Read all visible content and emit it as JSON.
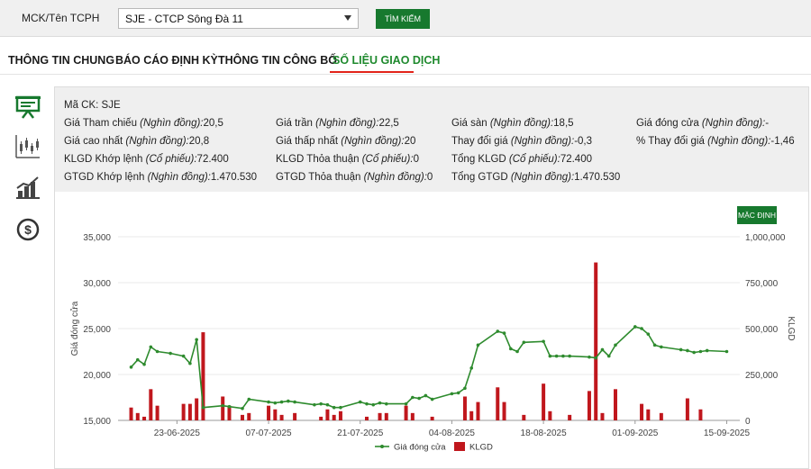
{
  "search": {
    "label": "MCK/Tên TCPH",
    "selected": "SJE - CTCP Sông Đà 11",
    "button": "TÌM KIẾM"
  },
  "tabs": [
    {
      "label": "THÔNG TIN CHUNG",
      "active": false
    },
    {
      "label": "BÁO CÁO ĐỊNH KỲ",
      "active": false
    },
    {
      "label": "THÔNG TIN CÔNG BỐ",
      "active": false
    },
    {
      "label": "SỐ LIỆU GIAO DỊCH",
      "active": true
    }
  ],
  "side_icons": [
    "presentation-icon",
    "candlestick-chart-icon",
    "bar-growth-icon",
    "dollar-coin-icon"
  ],
  "info": {
    "ticker": {
      "label": "Mã CK:",
      "value": "SJE"
    },
    "items": [
      {
        "label": "Giá Tham chiếu",
        "unit": "(Nghìn đồng):",
        "value": "20,5"
      },
      {
        "label": "Giá trần",
        "unit": "(Nghìn đồng):",
        "value": "22,5"
      },
      {
        "label": "Giá sàn",
        "unit": "(Nghìn đồng):",
        "value": "18,5"
      },
      {
        "label": "Giá đóng cửa",
        "unit": "(Nghìn đồng):",
        "value": "-"
      },
      {
        "label": "Giá cao nhất",
        "unit": "(Nghìn đồng):",
        "value": "20,8"
      },
      {
        "label": "Giá thấp nhất",
        "unit": "(Nghìn đồng):",
        "value": "20"
      },
      {
        "label": "Thay đổi giá",
        "unit": "(Nghìn đồng):",
        "value": "-0,3"
      },
      {
        "label": "% Thay đổi giá",
        "unit": "(Nghìn đồng):",
        "value": "-1,46"
      },
      {
        "label": "KLGD Khớp lệnh",
        "unit": "(Cổ phiếu):",
        "value": "72.400"
      },
      {
        "label": "KLGD Thỏa thuận",
        "unit": "(Cổ phiếu):",
        "value": "0"
      },
      {
        "label": "Tổng KLGD",
        "unit": "(Cổ phiếu):",
        "value": "72.400"
      },
      {
        "label": "GTGD Khớp lệnh",
        "unit": "(Nghìn đồng):",
        "value": "1.470.530"
      },
      {
        "label": "GTGD Thỏa thuận",
        "unit": "(Nghìn đồng):",
        "value": "0"
      },
      {
        "label": "Tổng GTGD",
        "unit": "(Nghìn đồng):",
        "value": "1.470.530"
      }
    ]
  },
  "chart_controls": {
    "reset_label": "MẶC ĐỊNH"
  },
  "colors": {
    "green": "#17792e",
    "line": "#2e8b2e",
    "bar": "#c0171d",
    "active_tab": "#1f8a2e",
    "underline": "#e2231a"
  },
  "chart_data": {
    "type": "bar+line",
    "ylabel_left": "Giá đóng cửa",
    "ylabel_right": "KLGD",
    "ylim_left": [
      15000,
      35000
    ],
    "yticks_left": [
      "15,000",
      "20,000",
      "25,000",
      "30,000",
      "35,000"
    ],
    "ylim_right": [
      0,
      1000000
    ],
    "yticks_right": [
      "0",
      "250,000",
      "500,000",
      "750,000",
      "1,000,000"
    ],
    "xticks": [
      {
        "label": "23-06-2025",
        "day": 0
      },
      {
        "label": "07-07-2025",
        "day": 14
      },
      {
        "label": "21-07-2025",
        "day": 28
      },
      {
        "label": "04-08-2025",
        "day": 42
      },
      {
        "label": "18-08-2025",
        "day": 56
      },
      {
        "label": "01-09-2025",
        "day": 70
      },
      {
        "label": "15-09-2025",
        "day": 84
      }
    ],
    "legend": [
      {
        "name": "Giá đóng cửa",
        "kind": "line"
      },
      {
        "name": "KLGD",
        "kind": "bar"
      }
    ],
    "series_price_day": [
      -7,
      -6,
      -5,
      -4,
      -3,
      -1,
      1,
      2,
      3,
      4,
      7,
      8,
      10,
      11,
      14,
      15,
      16,
      17,
      18,
      21,
      22,
      23,
      24,
      25,
      28,
      29,
      30,
      31,
      32,
      35,
      36,
      37,
      38,
      39,
      42,
      43,
      44,
      45,
      46,
      49,
      50,
      51,
      52,
      53,
      56,
      57,
      58,
      59,
      60,
      63,
      64,
      65,
      66,
      67,
      70,
      71,
      72,
      73,
      74,
      77,
      78,
      79,
      80,
      81,
      84
    ],
    "series_price": [
      20800,
      21600,
      21100,
      23000,
      22500,
      22300,
      22000,
      21200,
      23800,
      16400,
      16600,
      16500,
      16300,
      17300,
      17000,
      16900,
      17000,
      17100,
      17000,
      16700,
      16800,
      16700,
      16400,
      16400,
      17000,
      16800,
      16700,
      16900,
      16800,
      16800,
      17500,
      17400,
      17700,
      17300,
      17900,
      18000,
      18500,
      20700,
      23200,
      24700,
      24500,
      22800,
      22500,
      23500,
      23600,
      22000,
      22000,
      22000,
      22000,
      21900,
      21800,
      22700,
      22000,
      23200,
      25200,
      25000,
      24400,
      23200,
      23000,
      22700,
      22600,
      22400,
      22500,
      22600,
      22500
    ],
    "series_volume": [
      70000,
      40000,
      20000,
      170000,
      80000,
      0,
      90000,
      90000,
      120000,
      480000,
      130000,
      80000,
      30000,
      40000,
      80000,
      60000,
      30000,
      0,
      40000,
      0,
      20000,
      60000,
      30000,
      50000,
      0,
      20000,
      0,
      40000,
      40000,
      80000,
      40000,
      0,
      0,
      20000,
      0,
      0,
      130000,
      50000,
      100000,
      180000,
      100000,
      0,
      0,
      30000,
      200000,
      50000,
      0,
      0,
      30000,
      160000,
      860000,
      40000,
      0,
      170000,
      0,
      90000,
      60000,
      0,
      40000,
      0,
      120000,
      0,
      60000,
      0,
      0
    ]
  }
}
